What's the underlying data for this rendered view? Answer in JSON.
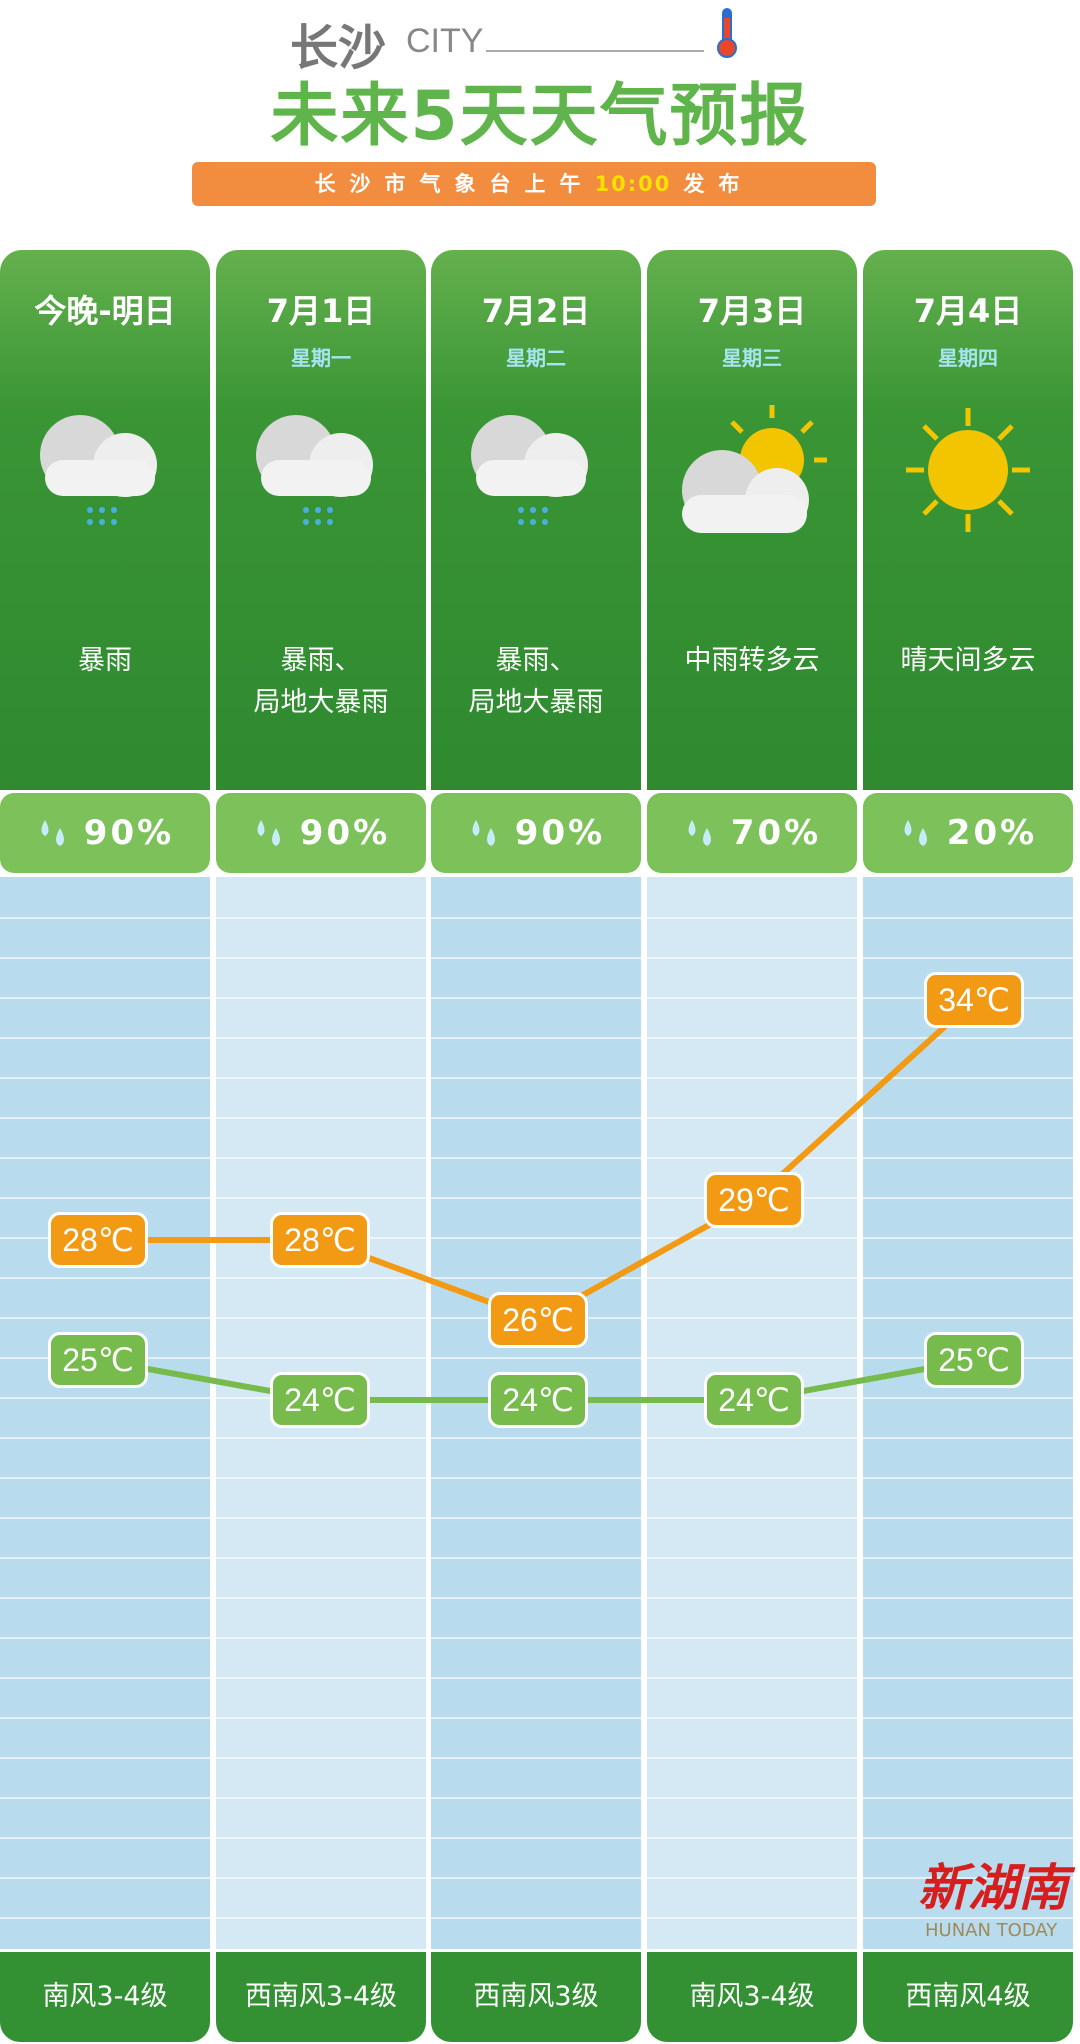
{
  "header": {
    "city": "长沙",
    "city_en": "CITY",
    "title": "未来5天天气预报",
    "banner_prefix": "长沙市气象台上午",
    "banner_time": "10:00",
    "banner_suffix": "发布"
  },
  "colors": {
    "green": "#339033",
    "high": "#f39a14",
    "low": "#76bb4c",
    "accent": "#f28c3e"
  },
  "days": [
    {
      "date": "今晚-明日",
      "week": "",
      "icon": "cloud-rain-icon",
      "desc": "暴雨",
      "rain": "90%",
      "high": "28℃",
      "low": "25℃",
      "wind": "南风3-4级"
    },
    {
      "date": "7月1日",
      "week": "星期一",
      "icon": "cloud-rain-icon",
      "desc": "暴雨、\n局地大暴雨",
      "rain": "90%",
      "high": "28℃",
      "low": "24℃",
      "wind": "西南风3-4级"
    },
    {
      "date": "7月2日",
      "week": "星期二",
      "icon": "cloud-rain-icon",
      "desc": "暴雨、\n局地大暴雨",
      "rain": "90%",
      "high": "26℃",
      "low": "24℃",
      "wind": "西南风3级"
    },
    {
      "date": "7月3日",
      "week": "星期三",
      "icon": "sun-cloud-icon",
      "desc": "中雨转多云",
      "rain": "70%",
      "high": "29℃",
      "low": "24℃",
      "wind": "南风3-4级"
    },
    {
      "date": "7月4日",
      "week": "星期四",
      "icon": "sun-icon",
      "desc": "晴天间多云",
      "rain": "20%",
      "high": "34℃",
      "low": "25℃",
      "wind": "西南风4级"
    }
  ],
  "chart_data": {
    "type": "line",
    "categories": [
      "今晚-明日",
      "7月1日",
      "7月2日",
      "7月3日",
      "7月4日"
    ],
    "series": [
      {
        "values": [
          28,
          28,
          26,
          29,
          34
        ]
      },
      {
        "values": [
          25,
          24,
          24,
          24,
          25
        ]
      }
    ]
  },
  "watermark": {
    "cn": "新湖南",
    "en": "HUNAN TODAY"
  }
}
